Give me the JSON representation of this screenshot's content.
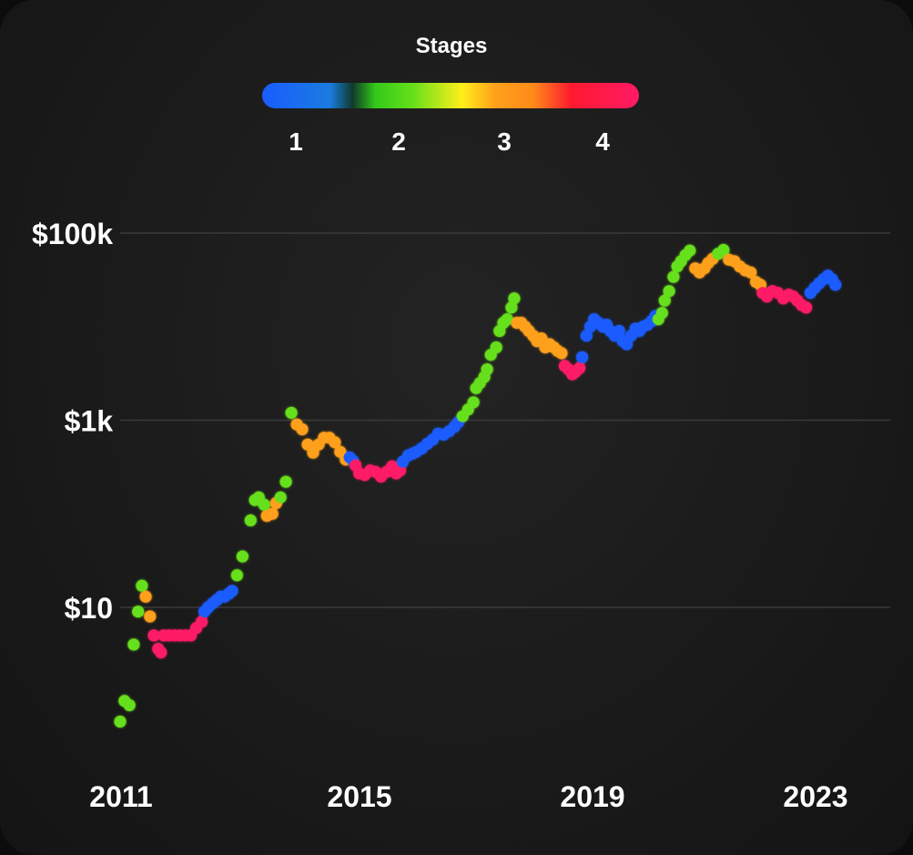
{
  "chart_data": {
    "type": "scatter",
    "legend": {
      "title": "Stages",
      "placement": "top-center",
      "labels": [
        "1",
        "2",
        "3",
        "4"
      ],
      "stage_colors": {
        "1": "#1a5cff",
        "2": "#66e01a",
        "3": "#ffa01a",
        "4": "#ff1a66"
      }
    },
    "y_scale": "log",
    "y_ticks": [
      {
        "value": 10,
        "label": "$10"
      },
      {
        "value": 1000,
        "label": "$1k"
      },
      {
        "value": 100000,
        "label": "$100k"
      }
    ],
    "x_ticks": [
      {
        "value": 2011,
        "label": "2011"
      },
      {
        "value": 2015,
        "label": "2015"
      },
      {
        "value": 2019,
        "label": "2019"
      },
      {
        "value": 2023,
        "label": "2023"
      }
    ],
    "xlim": [
      2011.0,
      2024.95
    ],
    "ylim": [
      0.45,
      300000
    ],
    "grid": true,
    "points": [
      [
        2011.0,
        0.6,
        2
      ],
      [
        2011.08,
        1.0,
        2
      ],
      [
        2011.17,
        0.9,
        2
      ],
      [
        2011.25,
        4.0,
        2
      ],
      [
        2011.33,
        9.0,
        2
      ],
      [
        2011.4,
        17.0,
        2
      ],
      [
        2011.47,
        13.0,
        3
      ],
      [
        2011.55,
        8.0,
        3
      ],
      [
        2011.62,
        5.0,
        4
      ],
      [
        2011.7,
        3.6,
        4
      ],
      [
        2011.75,
        3.3,
        4
      ],
      [
        2011.8,
        5.0,
        4
      ],
      [
        2011.9,
        5.0,
        4
      ],
      [
        2012.0,
        5.0,
        4
      ],
      [
        2012.1,
        5.0,
        4
      ],
      [
        2012.2,
        5.0,
        4
      ],
      [
        2012.3,
        5.0,
        4
      ],
      [
        2012.4,
        6.0,
        4
      ],
      [
        2012.5,
        7.0,
        4
      ],
      [
        2012.55,
        9.0,
        1
      ],
      [
        2012.62,
        10.0,
        1
      ],
      [
        2012.7,
        11.0,
        1
      ],
      [
        2012.78,
        12.0,
        1
      ],
      [
        2012.85,
        13.0,
        1
      ],
      [
        2012.92,
        13.0,
        1
      ],
      [
        2013.0,
        14.0,
        1
      ],
      [
        2013.06,
        15.0,
        1
      ],
      [
        2013.15,
        22.0,
        2
      ],
      [
        2013.25,
        35.0,
        2
      ],
      [
        2013.4,
        85.0,
        2
      ],
      [
        2013.48,
        140.0,
        2
      ],
      [
        2013.55,
        150.0,
        2
      ],
      [
        2013.65,
        125.0,
        2
      ],
      [
        2013.7,
        95.0,
        3
      ],
      [
        2013.8,
        100.0,
        3
      ],
      [
        2013.87,
        130.0,
        3
      ],
      [
        2013.95,
        150.0,
        2
      ],
      [
        2014.05,
        220.0,
        2
      ],
      [
        2014.15,
        1200.0,
        2
      ],
      [
        2014.25,
        900.0,
        3
      ],
      [
        2014.35,
        800.0,
        3
      ],
      [
        2014.45,
        550.0,
        3
      ],
      [
        2014.55,
        450.0,
        3
      ],
      [
        2014.65,
        550.0,
        3
      ],
      [
        2014.75,
        650.0,
        3
      ],
      [
        2014.85,
        650.0,
        3
      ],
      [
        2014.95,
        580.0,
        3
      ],
      [
        2015.05,
        460.0,
        3
      ],
      [
        2015.15,
        380.0,
        3
      ],
      [
        2015.22,
        400.0,
        1
      ],
      [
        2015.28,
        370.0,
        1
      ],
      [
        2015.33,
        330.0,
        4
      ],
      [
        2015.4,
        270.0,
        4
      ],
      [
        2015.5,
        260.0,
        4
      ],
      [
        2015.6,
        290.0,
        4
      ],
      [
        2015.7,
        280.0,
        4
      ],
      [
        2015.8,
        250.0,
        4
      ],
      [
        2015.9,
        280.0,
        4
      ],
      [
        2016.0,
        320.0,
        4
      ],
      [
        2016.08,
        270.0,
        4
      ],
      [
        2016.15,
        290.0,
        4
      ],
      [
        2016.2,
        360.0,
        1
      ],
      [
        2016.3,
        420.0,
        1
      ],
      [
        2016.38,
        440.0,
        1
      ],
      [
        2016.45,
        460.0,
        1
      ],
      [
        2016.55,
        500.0,
        1
      ],
      [
        2016.65,
        560.0,
        1
      ],
      [
        2016.75,
        620.0,
        1
      ],
      [
        2016.85,
        720.0,
        1
      ],
      [
        2016.95,
        700.0,
        1
      ],
      [
        2017.05,
        760.0,
        1
      ],
      [
        2017.15,
        850.0,
        1
      ],
      [
        2017.22,
        950.0,
        1
      ],
      [
        2017.3,
        1100.0,
        2
      ],
      [
        2017.4,
        1300.0,
        2
      ],
      [
        2017.5,
        1550.0,
        2
      ],
      [
        2017.55,
        2200.0,
        2
      ],
      [
        2017.62,
        2500.0,
        2
      ],
      [
        2017.7,
        2900.0,
        2
      ],
      [
        2017.75,
        3500.0,
        2
      ],
      [
        2017.82,
        5000.0,
        2
      ],
      [
        2017.92,
        6000.0,
        2
      ],
      [
        2017.98,
        9000.0,
        2
      ],
      [
        2018.05,
        11000.0,
        2
      ],
      [
        2018.12,
        12000.0,
        2
      ],
      [
        2018.2,
        16000.0,
        2
      ],
      [
        2018.25,
        20000.0,
        2
      ],
      [
        2018.3,
        11000.0,
        3
      ],
      [
        2018.38,
        11000.0,
        3
      ],
      [
        2018.45,
        10000.0,
        3
      ],
      [
        2018.52,
        9000.0,
        3
      ],
      [
        2018.6,
        8000.0,
        3
      ],
      [
        2018.67,
        7000.0,
        3
      ],
      [
        2018.75,
        7500.0,
        3
      ],
      [
        2018.82,
        6000.0,
        3
      ],
      [
        2018.9,
        6500.0,
        3
      ],
      [
        2018.98,
        6000.0,
        3
      ],
      [
        2019.05,
        5500.0,
        3
      ],
      [
        2019.12,
        5200.0,
        3
      ],
      [
        2019.18,
        3800.0,
        4
      ],
      [
        2019.25,
        3500.0,
        4
      ],
      [
        2019.32,
        3100.0,
        4
      ],
      [
        2019.38,
        3300.0,
        4
      ],
      [
        2019.45,
        3600.0,
        4
      ],
      [
        2019.5,
        4700.0,
        1
      ],
      [
        2019.58,
        8000.0,
        1
      ],
      [
        2019.65,
        10000.0,
        1
      ],
      [
        2019.72,
        12000.0,
        1
      ],
      [
        2019.8,
        11000.0,
        1
      ],
      [
        2019.88,
        10000.0,
        1
      ],
      [
        2019.95,
        10500.0,
        1
      ],
      [
        2020.02,
        9000.0,
        1
      ],
      [
        2020.1,
        8000.0,
        1
      ],
      [
        2020.18,
        9000.0,
        1
      ],
      [
        2020.25,
        7000.0,
        1
      ],
      [
        2020.32,
        6500.0,
        1
      ],
      [
        2020.4,
        8000.0,
        1
      ],
      [
        2020.48,
        9500.0,
        1
      ],
      [
        2020.55,
        9000.0,
        1
      ],
      [
        2020.62,
        10000.0,
        1
      ],
      [
        2020.7,
        10500.0,
        1
      ],
      [
        2020.78,
        11500.0,
        1
      ],
      [
        2020.85,
        13000.0,
        1
      ],
      [
        2020.9,
        12000.0,
        2
      ],
      [
        2020.97,
        14000.0,
        2
      ],
      [
        2021.02,
        19000.0,
        2
      ],
      [
        2021.1,
        24000.0,
        2
      ],
      [
        2021.18,
        34000.0,
        2
      ],
      [
        2021.25,
        44000.0,
        2
      ],
      [
        2021.32,
        50000.0,
        2
      ],
      [
        2021.4,
        58000.0,
        2
      ],
      [
        2021.48,
        65000.0,
        2
      ],
      [
        2021.58,
        42000.0,
        3
      ],
      [
        2021.66,
        38000.0,
        3
      ],
      [
        2021.75,
        42000.0,
        3
      ],
      [
        2021.82,
        48000.0,
        3
      ],
      [
        2021.9,
        53000.0,
        3
      ],
      [
        2022.0,
        60000.0,
        2
      ],
      [
        2022.1,
        66000.0,
        2
      ],
      [
        2022.2,
        52000.0,
        3
      ],
      [
        2022.3,
        50000.0,
        3
      ],
      [
        2022.4,
        44000.0,
        3
      ],
      [
        2022.5,
        40000.0,
        3
      ],
      [
        2022.6,
        38000.0,
        3
      ],
      [
        2022.7,
        30000.0,
        3
      ],
      [
        2022.78,
        28000.0,
        3
      ],
      [
        2022.82,
        23000.0,
        4
      ],
      [
        2022.9,
        21000.0,
        4
      ],
      [
        2023.0,
        24000.0,
        4
      ],
      [
        2023.1,
        23000.0,
        4
      ],
      [
        2023.2,
        20000.0,
        4
      ],
      [
        2023.3,
        22000.0,
        4
      ],
      [
        2023.38,
        21000.0,
        4
      ],
      [
        2023.46,
        19000.0,
        4
      ],
      [
        2023.54,
        17000.0,
        4
      ],
      [
        2023.62,
        16000.0,
        4
      ],
      [
        2023.7,
        23000.0,
        1
      ],
      [
        2023.78,
        26000.0,
        1
      ],
      [
        2023.86,
        29000.0,
        1
      ],
      [
        2023.94,
        32000.0,
        1
      ],
      [
        2024.02,
        35000.0,
        1
      ],
      [
        2024.1,
        32000.0,
        1
      ],
      [
        2024.16,
        28000.0,
        1
      ]
    ]
  }
}
